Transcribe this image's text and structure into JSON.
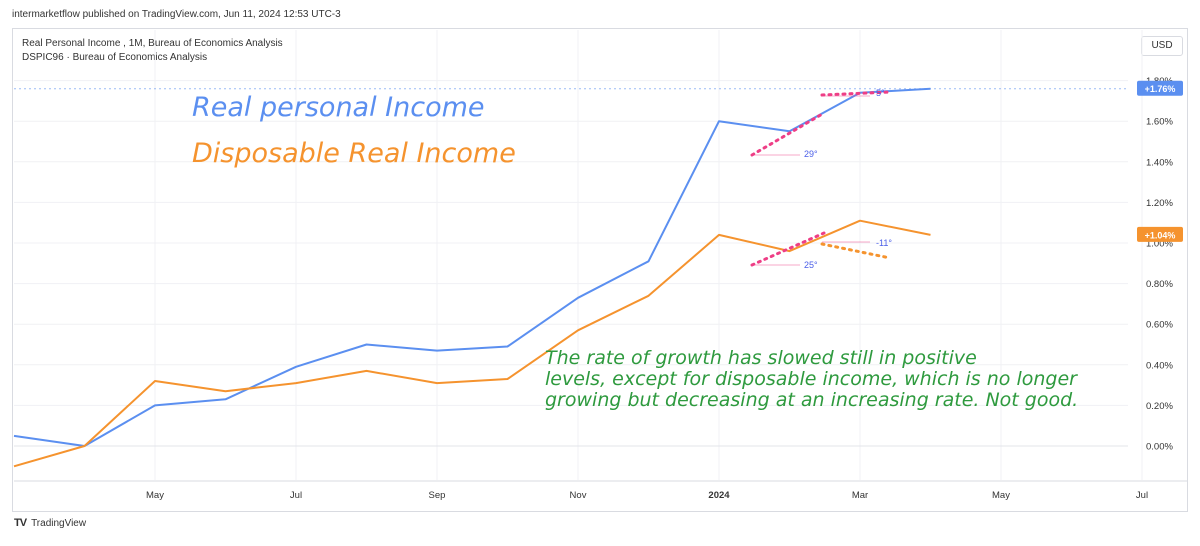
{
  "header": {
    "published_line": "intermarketflow published on TradingView.com, Jun 11, 2024 12:53 UTC-3"
  },
  "legend": {
    "line1": "Real Personal Income , 1M, Bureau of Economics Analysis",
    "line2": "DSPIC96 · Bureau of Economics Analysis"
  },
  "currency_label": "USD",
  "footer": {
    "logo_text": "TradingView"
  },
  "colors": {
    "real_personal_income": "#5b8ff0",
    "disposable_real_income": "#f5932e",
    "annotation_green": "#2e9a3e",
    "angle_marker": "#ee3e86"
  },
  "chart_data": {
    "type": "line",
    "y_unit": "%",
    "ylim": [
      -0.1,
      1.85
    ],
    "y_ticks": [
      "1.80%",
      "1.60%",
      "1.40%",
      "1.20%",
      "1.00%",
      "0.80%",
      "0.60%",
      "0.40%",
      "0.20%",
      "0.00%"
    ],
    "x_ticks": [
      "May",
      "Jul",
      "Sep",
      "Nov",
      "2024",
      "Mar",
      "May",
      "Jul"
    ],
    "x": [
      "2023-03",
      "2023-04",
      "2023-05",
      "2023-06",
      "2023-07",
      "2023-08",
      "2023-09",
      "2023-10",
      "2023-11",
      "2023-12",
      "2024-01",
      "2024-02",
      "2024-03",
      "2024-04"
    ],
    "series": [
      {
        "name": "Real personal Income",
        "values": [
          0.05,
          0.0,
          0.2,
          0.23,
          0.39,
          0.5,
          0.47,
          0.49,
          0.73,
          0.91,
          1.6,
          1.55,
          1.74,
          1.76
        ]
      },
      {
        "name": "Disposable Real Income",
        "values": [
          -0.1,
          0.0,
          0.32,
          0.27,
          0.31,
          0.37,
          0.31,
          0.33,
          0.57,
          0.74,
          1.04,
          0.96,
          1.11,
          1.04
        ]
      }
    ],
    "last_value_labels": [
      "+1.76%",
      "+1.04%"
    ],
    "legend_titles": [
      "Real personal Income",
      "Disposable Real Income"
    ],
    "annotation": "The rate of growth has slowed still in positive levels, except for disposable income, which is no longer growing but decreasing at an increasing rate. Not good.",
    "angle_labels": [
      "29°",
      "5°",
      "25°",
      "-11°"
    ],
    "grid": true
  }
}
